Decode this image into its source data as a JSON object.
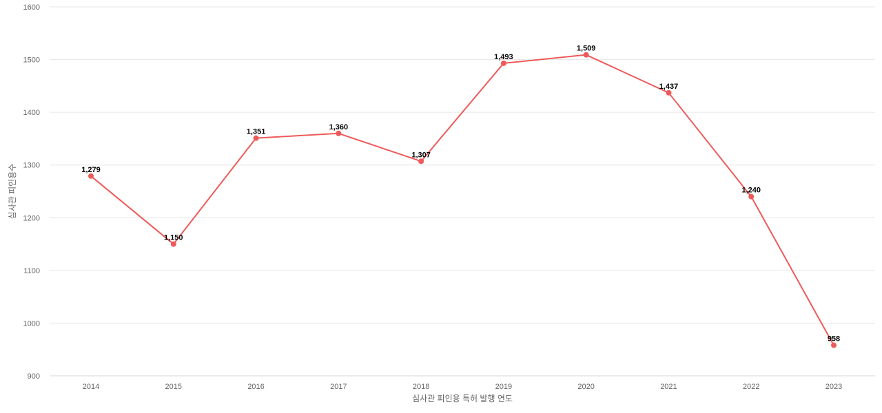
{
  "chart_data": {
    "type": "line",
    "categories": [
      "2014",
      "2015",
      "2016",
      "2017",
      "2018",
      "2019",
      "2020",
      "2021",
      "2022",
      "2023"
    ],
    "series": [
      {
        "values": [
          1279,
          1150,
          1351,
          1360,
          1307,
          1493,
          1509,
          1437,
          1240,
          958
        ],
        "color": "#ee5a5a"
      }
    ],
    "data_labels": [
      "1,279",
      "1,150",
      "1,351",
      "1,360",
      "1,307",
      "1,493",
      "1,509",
      "1,437",
      "1,240",
      "958"
    ],
    "xlabel": "심사관 피인용 특허 발행 연도",
    "ylabel": "심사관 피인용수",
    "ylim": [
      900,
      1600
    ],
    "y_ticks": [
      900,
      1000,
      1100,
      1200,
      1300,
      1400,
      1500,
      1600
    ],
    "grid": true,
    "legend": false
  }
}
